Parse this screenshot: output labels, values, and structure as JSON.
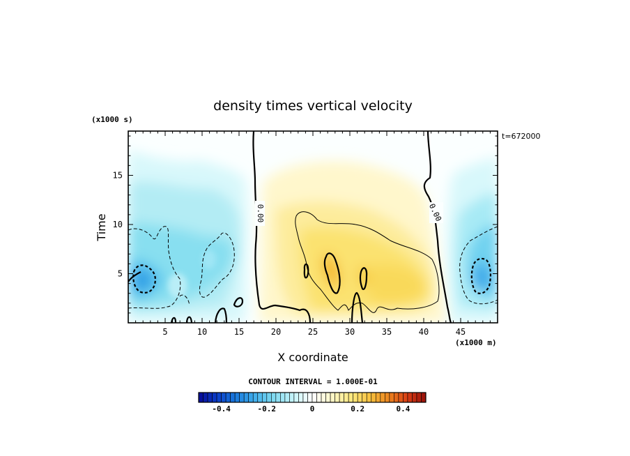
{
  "chart_data": {
    "type": "heatmap",
    "title": "density times vertical velocity",
    "xlabel": "X coordinate",
    "ylabel": "Time",
    "x_scale_note": "(x1000 m)",
    "y_scale_note": "(x1000 s)",
    "time_label": "t=672000",
    "xlim": [
      0,
      50
    ],
    "ylim": [
      0,
      19.5
    ],
    "x_ticks": [
      5,
      10,
      15,
      20,
      25,
      30,
      35,
      40,
      45
    ],
    "y_ticks": [
      5,
      10,
      15
    ],
    "zero_contour_labels": [
      "0.00",
      "0.00"
    ],
    "contour_interval_label": "CONTOUR INTERVAL = 1.000E-01",
    "colorbar": {
      "min": -0.5,
      "max": 0.5,
      "ticks": [
        -0.4,
        -0.2,
        0,
        0.2,
        0.4
      ],
      "tick_labels": [
        "-0.4",
        "-0.2",
        "0",
        "0.2",
        "0.4"
      ]
    },
    "field_features": [
      {
        "x": 2.2,
        "y": 5.0,
        "value": -0.3
      },
      {
        "x": 47.5,
        "y": 5.0,
        "value": -0.28
      },
      {
        "x": 27.5,
        "y": 5.5,
        "value": 0.18
      },
      {
        "x": 32.0,
        "y": 4.5,
        "value": 0.15
      },
      {
        "x": 37.0,
        "y": 4.0,
        "value": 0.12
      }
    ]
  },
  "colors": {
    "negative_strong": "#1e7fd8",
    "negative_light": "#bff3f8",
    "positive_light": "#fff6c4",
    "positive_strong": "#f2a800",
    "contour": "#000000"
  }
}
